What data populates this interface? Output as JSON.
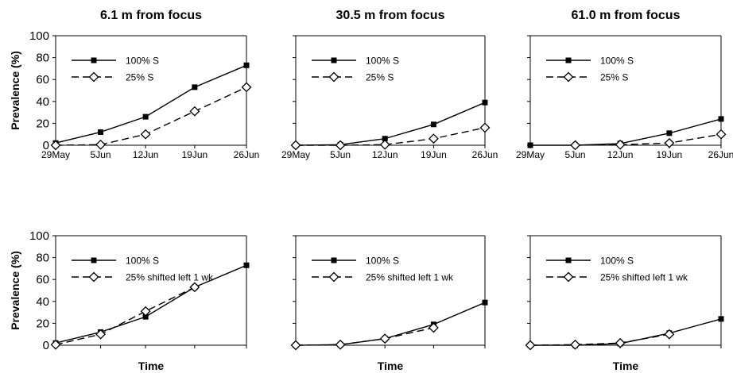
{
  "chart_data": [
    {
      "type": "line",
      "title": "6.1 m from focus",
      "xlabel": "",
      "ylabel": "Prevalence (%)",
      "categories": [
        "29May",
        "5Jun",
        "12Jun",
        "19Jun",
        "26Jun"
      ],
      "ylim": [
        0,
        100
      ],
      "yticks": [
        "0",
        "20",
        "40",
        "60",
        "80",
        "100"
      ],
      "grid": false,
      "legend_position": "top-left",
      "series": [
        {
          "name": "100% S",
          "marker": "filled-square",
          "dash": "solid",
          "values": [
            2,
            12,
            26,
            53,
            73
          ]
        },
        {
          "name": "25% S",
          "marker": "open-diamond",
          "dash": "dashed",
          "values": [
            0,
            0.5,
            10,
            31,
            53
          ]
        }
      ]
    },
    {
      "type": "line",
      "title": "30.5 m from focus",
      "xlabel": "",
      "ylabel": "",
      "categories": [
        "29May",
        "5Jun",
        "12Jun",
        "19Jun",
        "26Jun"
      ],
      "ylim": [
        0,
        100
      ],
      "grid": false,
      "legend_position": "top-left",
      "series": [
        {
          "name": "100% S",
          "marker": "filled-square",
          "dash": "solid",
          "values": [
            0,
            0.5,
            6,
            19,
            39
          ]
        },
        {
          "name": "25% S",
          "marker": "open-diamond",
          "dash": "dashed",
          "values": [
            0,
            0,
            0.5,
            6,
            16
          ]
        }
      ]
    },
    {
      "type": "line",
      "title": "61.0 m from focus",
      "xlabel": "",
      "ylabel": "",
      "categories": [
        "29May",
        "5Jun",
        "12Jun",
        "19Jun",
        "26Jun"
      ],
      "ylim": [
        0,
        100
      ],
      "grid": false,
      "legend_position": "top-left",
      "series": [
        {
          "name": "100% S",
          "marker": "filled-square",
          "dash": "solid",
          "values": [
            0,
            0,
            1.5,
            11,
            24
          ]
        },
        {
          "name": "25% S",
          "marker": "open-diamond",
          "dash": "dashed",
          "values": [
            null,
            0,
            0.5,
            2,
            10
          ]
        }
      ]
    },
    {
      "type": "line",
      "title": "",
      "xlabel": "Time",
      "ylabel": "Prevalence (%)",
      "categories": [
        "",
        "",
        "",
        "",
        ""
      ],
      "ylim": [
        0,
        100
      ],
      "yticks": [
        "0",
        "20",
        "40",
        "60",
        "80",
        "100"
      ],
      "grid": false,
      "legend_position": "top-left",
      "series": [
        {
          "name": "100% S",
          "marker": "filled-square",
          "dash": "solid",
          "values": [
            2,
            12,
            26,
            53,
            73
          ]
        },
        {
          "name": "25% shifted left 1 wk",
          "marker": "open-diamond",
          "dash": "dashed",
          "values": [
            0.5,
            10,
            31,
            53,
            null
          ]
        }
      ]
    },
    {
      "type": "line",
      "title": "",
      "xlabel": "Time",
      "ylabel": "",
      "categories": [
        "",
        "",
        "",
        "",
        ""
      ],
      "ylim": [
        0,
        100
      ],
      "grid": false,
      "legend_position": "top-left",
      "series": [
        {
          "name": "100% S",
          "marker": "filled-square",
          "dash": "solid",
          "values": [
            0,
            0.5,
            6,
            19,
            39
          ]
        },
        {
          "name": "25% shifted left 1 wk",
          "marker": "open-diamond",
          "dash": "dashed",
          "values": [
            0,
            0.5,
            6,
            16,
            null
          ]
        }
      ]
    },
    {
      "type": "line",
      "title": "",
      "xlabel": "Time",
      "ylabel": "",
      "categories": [
        "",
        "",
        "",
        "",
        ""
      ],
      "ylim": [
        0,
        100
      ],
      "grid": false,
      "legend_position": "top-left",
      "series": [
        {
          "name": "100% S",
          "marker": "filled-square",
          "dash": "solid",
          "values": [
            0,
            0,
            1.5,
            11,
            24
          ]
        },
        {
          "name": "25% shifted left 1 wk",
          "marker": "open-diamond",
          "dash": "dashed",
          "values": [
            0,
            0.5,
            2,
            10,
            null
          ]
        }
      ]
    }
  ]
}
